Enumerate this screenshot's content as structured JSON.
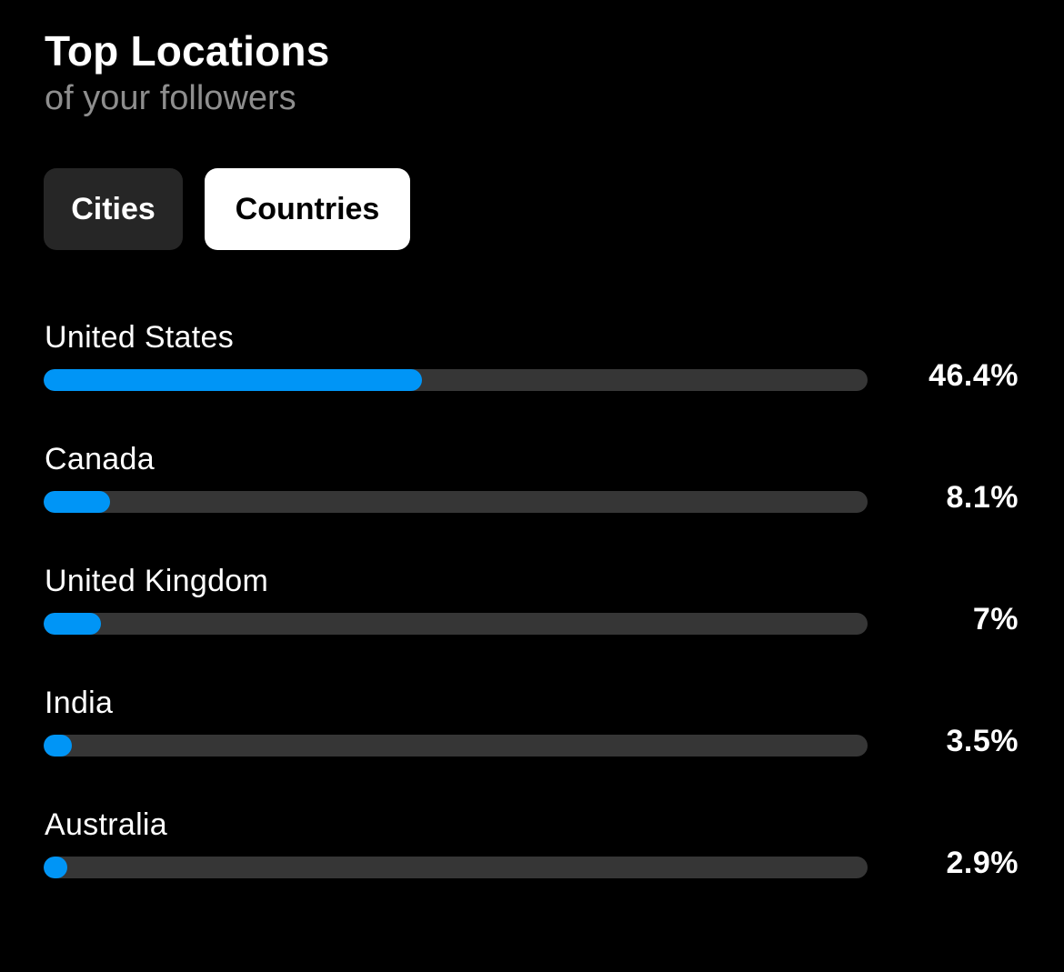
{
  "header": {
    "title": "Top Locations",
    "subtitle": "of your followers"
  },
  "tabs": [
    {
      "label": "Cities",
      "selected": false
    },
    {
      "label": "Countries",
      "selected": true
    }
  ],
  "colors": {
    "accent": "#0095f6",
    "track": "#363636",
    "background": "#000000",
    "inactive_tab": "#262626",
    "subtitle": "#8e8e8e"
  },
  "locations": [
    {
      "name": "United States",
      "percent_label": "46.4%",
      "percent": 46.4
    },
    {
      "name": "Canada",
      "percent_label": "8.1%",
      "percent": 8.1
    },
    {
      "name": "United Kingdom",
      "percent_label": "7%",
      "percent": 7
    },
    {
      "name": "India",
      "percent_label": "3.5%",
      "percent": 3.5
    },
    {
      "name": "Australia",
      "percent_label": "2.9%",
      "percent": 2.9
    }
  ]
}
